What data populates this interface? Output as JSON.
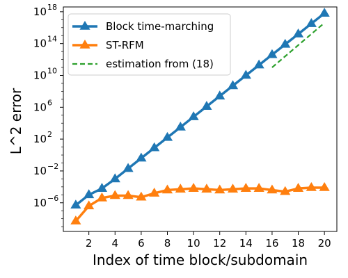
{
  "chart_data": {
    "type": "line",
    "xlabel": "Index of time block/subdomain",
    "ylabel": "L^2 error",
    "yscale": "log",
    "xlim": [
      0.05,
      20.95
    ],
    "ylim_exp": [
      -9.6,
      18.6
    ],
    "x_ticks": [
      2,
      4,
      6,
      8,
      10,
      12,
      14,
      16,
      18,
      20
    ],
    "y_ticks": [
      {
        "exp": 18,
        "base": "10",
        "sup": "18"
      },
      {
        "exp": 14,
        "base": "10",
        "sup": "14"
      },
      {
        "exp": 10,
        "base": "10",
        "sup": "10"
      },
      {
        "exp": 6,
        "base": "10",
        "sup": "6"
      },
      {
        "exp": 2,
        "base": "10",
        "sup": "2"
      },
      {
        "exp": -2,
        "base": "10",
        "sup": "−2"
      },
      {
        "exp": -6,
        "base": "10",
        "sup": "−6"
      }
    ],
    "legend_position": "upper-left",
    "series": [
      {
        "name": "Block time-marching",
        "color": "#1f77b4",
        "style": "solid-triangle",
        "x": [
          1,
          2,
          3,
          4,
          5,
          6,
          7,
          8,
          9,
          10,
          11,
          12,
          13,
          14,
          15,
          16,
          17,
          18,
          19,
          20
        ],
        "log10_y": [
          -6.3,
          -5.0,
          -4.2,
          -3.0,
          -1.7,
          -0.4,
          0.9,
          2.2,
          3.5,
          4.8,
          6.1,
          7.4,
          8.7,
          10.0,
          11.3,
          12.6,
          13.9,
          15.2,
          16.5,
          17.8
        ]
      },
      {
        "name": "ST-RFM",
        "color": "#ff7f0e",
        "style": "solid-triangle",
        "x": [
          1,
          2,
          3,
          4,
          5,
          6,
          7,
          8,
          9,
          10,
          11,
          12,
          13,
          14,
          15,
          16,
          17,
          18,
          19,
          20
        ],
        "log10_y": [
          -8.3,
          -6.4,
          -5.4,
          -5.1,
          -5.1,
          -5.3,
          -4.8,
          -4.4,
          -4.3,
          -4.2,
          -4.3,
          -4.4,
          -4.3,
          -4.2,
          -4.2,
          -4.4,
          -4.6,
          -4.2,
          -4.1,
          -4.1
        ]
      },
      {
        "name": "estimation from (18)",
        "color": "#2ca02c",
        "style": "dashed",
        "x": [
          16,
          20
        ],
        "log10_y": [
          11.0,
          16.6
        ]
      }
    ]
  }
}
